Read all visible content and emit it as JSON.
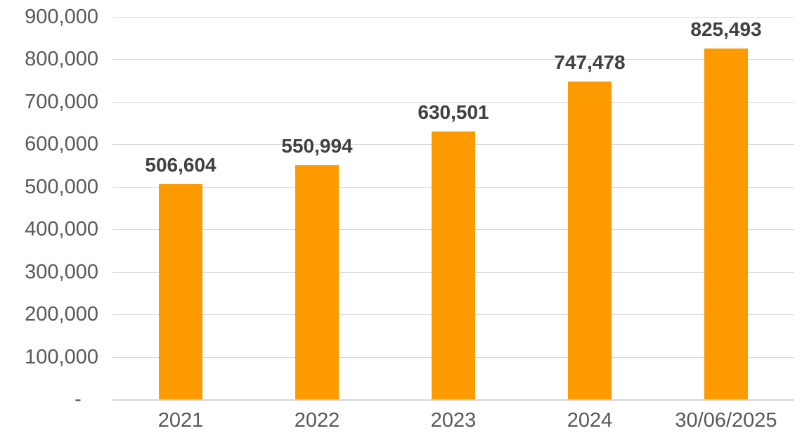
{
  "chart_data": {
    "type": "bar",
    "categories": [
      "2021",
      "2022",
      "2023",
      "2024",
      "30/06/2025"
    ],
    "values": [
      506604,
      550994,
      630501,
      747478,
      825493
    ],
    "value_labels": [
      "506,604",
      "550,994",
      "630,501",
      "747,478",
      "825,493"
    ],
    "title": "",
    "xlabel": "",
    "ylabel": "",
    "ylim": [
      0,
      900000
    ],
    "ytick_interval": 100000,
    "ytick_labels_top_down": [
      "900,000",
      "800,000",
      "700,000",
      "600,000",
      "500,000",
      "400,000",
      "300,000",
      "200,000",
      "100,000",
      "-   "
    ],
    "grid": true,
    "legend": false,
    "colors": {
      "bar": "#FC9A00",
      "gridline": "#D9D9D9",
      "axis_line": "#D6D6D6",
      "axis_text": "#595959",
      "data_label_text": "#404040",
      "background": "#FFFFFF"
    }
  }
}
